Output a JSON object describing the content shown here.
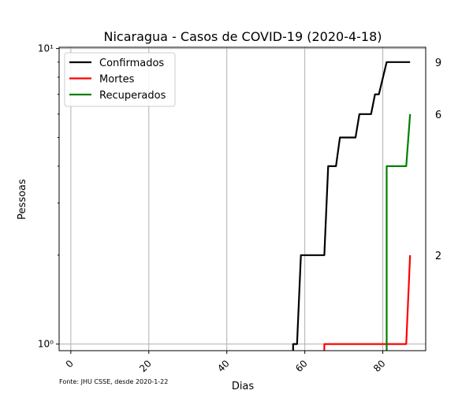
{
  "chart_data": {
    "type": "line",
    "title": "Nicaragua - Casos de COVID-19 (2020-4-18)",
    "xlabel": "Dias",
    "ylabel": "Pessoas",
    "xlim": [
      -3,
      91
    ],
    "ylim": [
      0.95,
      10.1
    ],
    "yscale": "log",
    "grid": true,
    "legend_position": "top-left",
    "x_ticks": [
      0,
      20,
      40,
      60,
      80
    ],
    "x_tick_labels": [
      "0",
      "20",
      "40",
      "60",
      "80"
    ],
    "y_ticks": [
      1,
      10
    ],
    "y_tick_labels": [
      "10⁰",
      "10¹"
    ],
    "right_labels": [
      {
        "value": 9,
        "text": "9"
      },
      {
        "value": 6,
        "text": "6"
      },
      {
        "value": 2,
        "text": "2"
      }
    ],
    "source_note": "Fonte: JHU CSSE, desde 2020-1-22",
    "series": [
      {
        "name": "Confirmados",
        "color": "#000000",
        "points": [
          [
            57,
            0.9
          ],
          [
            57,
            1
          ],
          [
            58,
            1
          ],
          [
            59,
            2
          ],
          [
            65,
            2
          ],
          [
            66,
            4
          ],
          [
            68,
            4
          ],
          [
            69,
            5
          ],
          [
            73,
            5
          ],
          [
            74,
            6
          ],
          [
            77,
            6
          ],
          [
            78,
            7
          ],
          [
            79,
            7
          ],
          [
            81,
            9
          ],
          [
            87,
            9
          ]
        ]
      },
      {
        "name": "Mortes",
        "color": "#ff0000",
        "points": [
          [
            65,
            0.9
          ],
          [
            65,
            1
          ],
          [
            86,
            1
          ],
          [
            87,
            2
          ]
        ]
      },
      {
        "name": "Recuperados",
        "color": "#008000",
        "points": [
          [
            81,
            0.9
          ],
          [
            81,
            4
          ],
          [
            86,
            4
          ],
          [
            87,
            6
          ]
        ]
      }
    ]
  }
}
